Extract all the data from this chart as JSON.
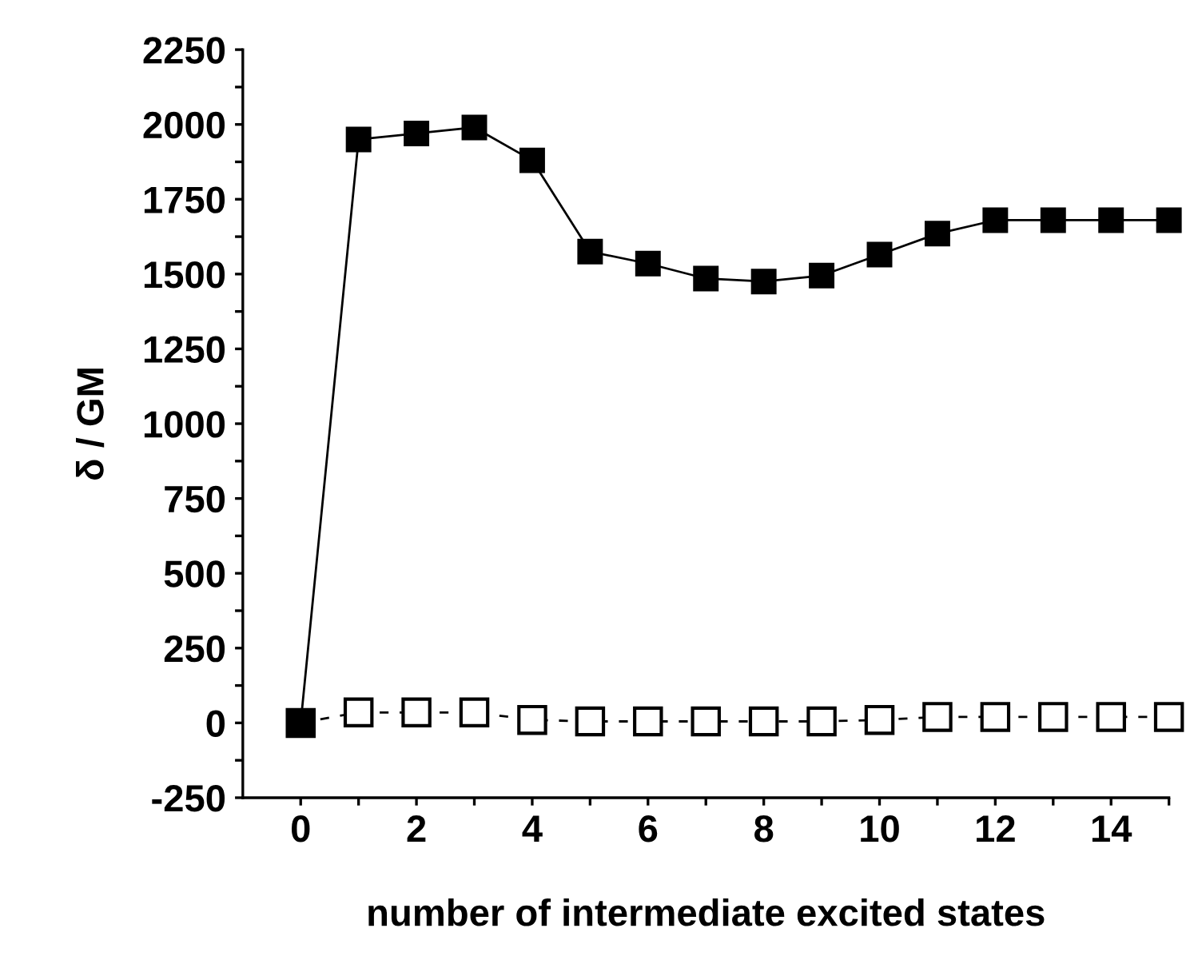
{
  "chart_data": {
    "type": "line",
    "xlabel": "number of intermediate excited states",
    "ylabel": "δ / GM",
    "x": [
      0,
      1,
      2,
      3,
      4,
      5,
      6,
      7,
      8,
      9,
      10,
      11,
      12,
      13,
      14,
      15
    ],
    "series": [
      {
        "color": "#000000",
        "marker": "square",
        "line_style": "dashed",
        "values": [
          0,
          35,
          35,
          35,
          10,
          5,
          5,
          5,
          5,
          5,
          10,
          20,
          20,
          20,
          20,
          20
        ]
      },
      {
        "color": "#000000",
        "marker": "square",
        "line_style": "solid",
        "values": [
          0,
          1950,
          1970,
          1990,
          1880,
          1575,
          1535,
          1485,
          1475,
          1495,
          1565,
          1635,
          1680,
          1680,
          1680,
          1680
        ]
      }
    ],
    "xlim": [
      -1,
      15
    ],
    "xticks": [
      0,
      {
        "value": 1,
        "label": null
      },
      2,
      {
        "value": 3,
        "label": null
      },
      4,
      {
        "value": 5,
        "label": null
      },
      6,
      {
        "value": 7,
        "label": null
      },
      8,
      {
        "value": 9,
        "label": null
      },
      10,
      {
        "value": 11,
        "label": null
      },
      12,
      {
        "value": 13,
        "label": null
      },
      14,
      {
        "value": 15,
        "label": null
      }
    ],
    "ylim": [
      -250,
      2250
    ],
    "yticks": [
      -250,
      {
        "value": -125,
        "label": null
      },
      0,
      {
        "value": 125,
        "label": null
      },
      250,
      {
        "value": 375,
        "label": null
      },
      500,
      {
        "value": 625,
        "label": null
      },
      750,
      {
        "value": 875,
        "label": null
      },
      1000,
      {
        "value": 1125,
        "label": null
      },
      1250,
      {
        "value": 1375,
        "label": null
      },
      1500,
      {
        "value": 1625,
        "label": null
      },
      1750,
      {
        "value": 1875,
        "label": null
      },
      2000,
      {
        "value": 2125,
        "label": null
      },
      2250
    ],
    "grid": false,
    "legend": false
  }
}
